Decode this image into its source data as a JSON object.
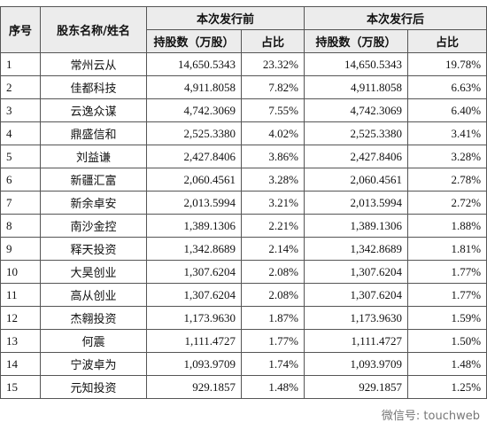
{
  "table": {
    "header": {
      "no": "序号",
      "name": "股东名称/姓名",
      "before": "本次发行前",
      "after": "本次发行后",
      "before_shares": "持股数（万股）",
      "before_pct": "占比",
      "after_shares": "持股数（万股）",
      "after_pct": "占比"
    },
    "rows": [
      [
        "1",
        "常州云从",
        "14,650.5343",
        "23.32%",
        "14,650.5343",
        "19.78%"
      ],
      [
        "2",
        "佳都科技",
        "4,911.8058",
        "7.82%",
        "4,911.8058",
        "6.63%"
      ],
      [
        "3",
        "云逸众谋",
        "4,742.3069",
        "7.55%",
        "4,742.3069",
        "6.40%"
      ],
      [
        "4",
        "鼎盛信和",
        "2,525.3380",
        "4.02%",
        "2,525.3380",
        "3.41%"
      ],
      [
        "5",
        "刘益谦",
        "2,427.8406",
        "3.86%",
        "2,427.8406",
        "3.28%"
      ],
      [
        "6",
        "新疆汇富",
        "2,060.4561",
        "3.28%",
        "2,060.4561",
        "2.78%"
      ],
      [
        "7",
        "新余卓安",
        "2,013.5994",
        "3.21%",
        "2,013.5994",
        "2.72%"
      ],
      [
        "8",
        "南沙金控",
        "1,389.1306",
        "2.21%",
        "1,389.1306",
        "1.88%"
      ],
      [
        "9",
        "释天投资",
        "1,342.8689",
        "2.14%",
        "1,342.8689",
        "1.81%"
      ],
      [
        "10",
        "大昊创业",
        "1,307.6204",
        "2.08%",
        "1,307.6204",
        "1.77%"
      ],
      [
        "11",
        "高从创业",
        "1,307.6204",
        "2.08%",
        "1,307.6204",
        "1.77%"
      ],
      [
        "12",
        "杰翱投资",
        "1,173.9630",
        "1.87%",
        "1,173.9630",
        "1.59%"
      ],
      [
        "13",
        "何震",
        "1,111.4727",
        "1.77%",
        "1,111.4727",
        "1.50%"
      ],
      [
        "14",
        "宁波卓为",
        "1,093.9709",
        "1.74%",
        "1,093.9709",
        "1.48%"
      ],
      [
        "15",
        "元知投资",
        "929.1857",
        "1.48%",
        "929.1857",
        "1.25%"
      ]
    ]
  },
  "watermark": "微信号: touchweb"
}
